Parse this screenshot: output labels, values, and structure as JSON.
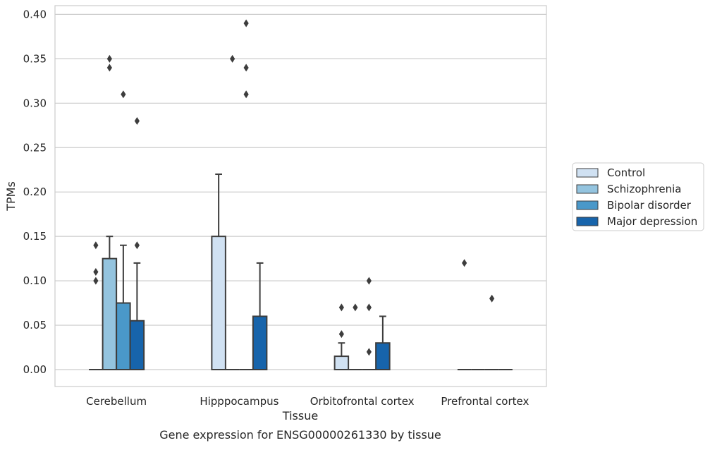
{
  "chart_data": {
    "type": "boxplot",
    "title": "Gene expression for ENSG00000261330 by tissue",
    "xlabel": "Tissue",
    "ylabel": "TPMs",
    "ylim": [
      -0.019,
      0.41
    ],
    "yticks": [
      "0.00",
      "0.05",
      "0.10",
      "0.15",
      "0.20",
      "0.25",
      "0.30",
      "0.35",
      "0.40"
    ],
    "ytick_values": [
      0,
      0.05,
      0.1,
      0.15,
      0.2,
      0.25,
      0.3,
      0.35,
      0.4
    ],
    "grid": "horizontal",
    "legend_position": "right",
    "categories": [
      "Cerebellum",
      "Hipppocampus",
      "Orbitofrontal cortex",
      "Prefrontal cortex"
    ],
    "series": [
      {
        "name": "Control",
        "color": "#d0e1f2",
        "boxes": [
          {
            "q1": 0,
            "median": 0,
            "q3": 0,
            "whisker_low": 0,
            "whisker_high": 0,
            "outliers": [
              0.14,
              0.11,
              0.1
            ]
          },
          {
            "q1": 0,
            "median": 0,
            "q3": 0.15,
            "whisker_low": 0,
            "whisker_high": 0.22,
            "outliers": []
          },
          {
            "q1": 0,
            "median": 0,
            "q3": 0.015,
            "whisker_low": 0,
            "whisker_high": 0.03,
            "outliers": [
              0.07,
              0.04
            ]
          },
          {
            "q1": 0,
            "median": 0,
            "q3": 0,
            "whisker_low": 0,
            "whisker_high": 0,
            "outliers": [
              0.12
            ]
          }
        ]
      },
      {
        "name": "Schizophrenia",
        "color": "#94c4df",
        "boxes": [
          {
            "q1": 0,
            "median": 0,
            "q3": 0.125,
            "whisker_low": 0,
            "whisker_high": 0.15,
            "outliers": [
              0.35,
              0.34
            ]
          },
          {
            "q1": 0,
            "median": 0,
            "q3": 0,
            "whisker_low": 0,
            "whisker_high": 0,
            "outliers": [
              0.35
            ]
          },
          {
            "q1": 0,
            "median": 0,
            "q3": 0,
            "whisker_low": 0,
            "whisker_high": 0,
            "outliers": [
              0.07
            ]
          },
          {
            "q1": 0,
            "median": 0,
            "q3": 0,
            "whisker_low": 0,
            "whisker_high": 0,
            "outliers": []
          }
        ]
      },
      {
        "name": "Bipolar disorder",
        "color": "#4a98c9",
        "boxes": [
          {
            "q1": 0,
            "median": 0,
            "q3": 0.075,
            "whisker_low": 0,
            "whisker_high": 0.14,
            "outliers": [
              0.31
            ]
          },
          {
            "q1": 0,
            "median": 0,
            "q3": 0,
            "whisker_low": 0,
            "whisker_high": 0,
            "outliers": [
              0.39,
              0.34,
              0.31
            ]
          },
          {
            "q1": 0,
            "median": 0,
            "q3": 0,
            "whisker_low": 0,
            "whisker_high": 0,
            "outliers": [
              0.1,
              0.07,
              0.02
            ]
          },
          {
            "q1": 0,
            "median": 0,
            "q3": 0,
            "whisker_low": 0,
            "whisker_high": 0,
            "outliers": [
              0.08
            ]
          }
        ]
      },
      {
        "name": "Major depression",
        "color": "#1764ab",
        "boxes": [
          {
            "q1": 0,
            "median": 0,
            "q3": 0.055,
            "whisker_low": 0,
            "whisker_high": 0.12,
            "outliers": [
              0.28,
              0.14
            ]
          },
          {
            "q1": 0,
            "median": 0,
            "q3": 0.06,
            "whisker_low": 0,
            "whisker_high": 0.12,
            "outliers": []
          },
          {
            "q1": 0,
            "median": 0,
            "q3": 0.03,
            "whisker_low": 0,
            "whisker_high": 0.06,
            "outliers": []
          },
          {
            "q1": 0,
            "median": 0,
            "q3": 0,
            "whisker_low": 0,
            "whisker_high": 0,
            "outliers": []
          }
        ]
      }
    ]
  }
}
